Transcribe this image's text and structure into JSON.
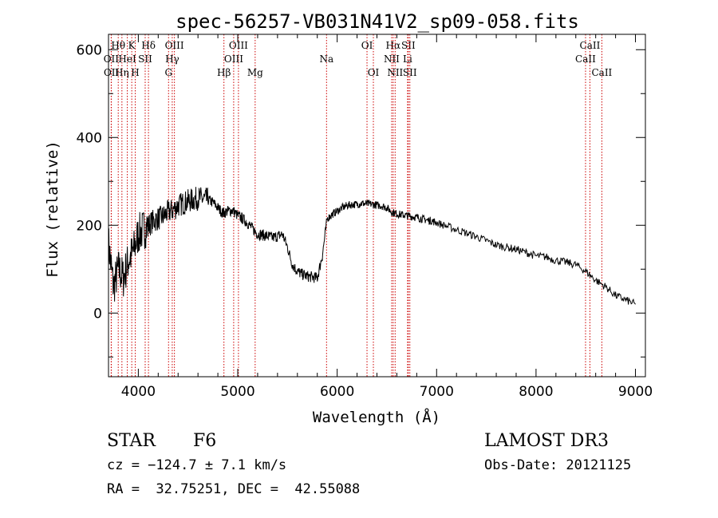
{
  "chart_data": {
    "type": "line",
    "title": "spec-56257-VB031N41V2_sp09-058.fits",
    "xlabel": "Wavelength (Å)",
    "ylabel": "Flux (relative)",
    "xlim": [
      3700,
      9100
    ],
    "ylim": [
      -145,
      635
    ],
    "x_ticks": [
      4000,
      5000,
      6000,
      7000,
      8000,
      9000
    ],
    "x_tick_labels": [
      "4000",
      "5000",
      "6000",
      "7000",
      "8000",
      "9000"
    ],
    "y_ticks": [
      0,
      200,
      400,
      600
    ],
    "y_tick_labels": [
      "0",
      "200",
      "400",
      "600"
    ],
    "series": [
      {
        "name": "flux",
        "x": [
          3700,
          3750,
          3800,
          3850,
          3900,
          3950,
          4000,
          4050,
          4100,
          4150,
          4200,
          4250,
          4300,
          4350,
          4400,
          4450,
          4500,
          4550,
          4600,
          4650,
          4700,
          4750,
          4800,
          4850,
          4900,
          4950,
          5000,
          5050,
          5100,
          5150,
          5200,
          5250,
          5300,
          5350,
          5400,
          5450,
          5500,
          5550,
          5600,
          5650,
          5700,
          5750,
          5800,
          5850,
          5900,
          5950,
          6000,
          6050,
          6100,
          6150,
          6200,
          6250,
          6300,
          6350,
          6400,
          6450,
          6500,
          6550,
          6600,
          6650,
          6700,
          6750,
          6800,
          6850,
          6900,
          6950,
          7000,
          7100,
          7200,
          7300,
          7400,
          7500,
          7600,
          7700,
          7800,
          7900,
          8000,
          8100,
          8200,
          8300,
          8400,
          8500,
          8600,
          8700,
          8800,
          8900,
          9000
        ],
        "y": [
          160,
          60,
          100,
          80,
          120,
          140,
          180,
          190,
          200,
          210,
          215,
          220,
          230,
          235,
          245,
          250,
          255,
          258,
          262,
          260,
          258,
          252,
          240,
          228,
          232,
          234,
          222,
          215,
          205,
          192,
          180,
          178,
          175,
          172,
          175,
          180,
          150,
          110,
          95,
          88,
          84,
          82,
          80,
          130,
          215,
          225,
          232,
          240,
          245,
          247,
          248,
          250,
          249,
          248,
          246,
          244,
          240,
          230,
          226,
          224,
          222,
          220,
          218,
          215,
          212,
          210,
          206,
          198,
          190,
          182,
          174,
          165,
          155,
          150,
          145,
          138,
          130,
          128,
          120,
          116,
          110,
          95,
          75,
          60,
          40,
          30,
          20
        ]
      }
    ],
    "line_markers": [
      {
        "name": "Hθ",
        "wavelength": 3798,
        "row": 1
      },
      {
        "name": "OII",
        "wavelength": 3727,
        "row": 2
      },
      {
        "name": "OII",
        "wavelength": 3729,
        "row": 3
      },
      {
        "name": "HeI",
        "wavelength": 3889,
        "row": 2
      },
      {
        "name": "Hη",
        "wavelength": 3835,
        "row": 3
      },
      {
        "name": "K",
        "wavelength": 3934,
        "row": 1
      },
      {
        "name": "H",
        "wavelength": 3969,
        "row": 3
      },
      {
        "name": "SII",
        "wavelength": 4069,
        "row": 2
      },
      {
        "name": "Hδ",
        "wavelength": 4102,
        "row": 1
      },
      {
        "name": "OIII",
        "wavelength": 4363,
        "row": 1
      },
      {
        "name": "Hγ",
        "wavelength": 4341,
        "row": 2
      },
      {
        "name": "G",
        "wavelength": 4304,
        "row": 3
      },
      {
        "name": "Hβ",
        "wavelength": 4861,
        "row": 3
      },
      {
        "name": "OIII",
        "wavelength": 5007,
        "row": 1
      },
      {
        "name": "OIII",
        "wavelength": 4959,
        "row": 2
      },
      {
        "name": "Mg",
        "wavelength": 5175,
        "row": 3
      },
      {
        "name": "Na",
        "wavelength": 5893,
        "row": 2
      },
      {
        "name": "OI",
        "wavelength": 6300,
        "row": 1
      },
      {
        "name": "OI",
        "wavelength": 6364,
        "row": 3
      },
      {
        "name": "Hα",
        "wavelength": 6563,
        "row": 1
      },
      {
        "name": "NII",
        "wavelength": 6548,
        "row": 2
      },
      {
        "name": "NII",
        "wavelength": 6583,
        "row": 3
      },
      {
        "name": "SII",
        "wavelength": 6716,
        "row": 1
      },
      {
        "name": "Li",
        "wavelength": 6708,
        "row": 2
      },
      {
        "name": "SII",
        "wavelength": 6731,
        "row": 3
      },
      {
        "name": "CaII",
        "wavelength": 8542,
        "row": 1
      },
      {
        "name": "CaII",
        "wavelength": 8498,
        "row": 2
      },
      {
        "name": "CaII",
        "wavelength": 8662,
        "row": 3
      }
    ]
  },
  "info": {
    "class": "STAR",
    "subclass": "F6",
    "survey": "LAMOST DR3",
    "cz": "cz = −124.7 ± 7.1 km/s",
    "obs_date": "Obs-Date: 20121125",
    "coords": "RA =  32.75251, DEC =  42.55088"
  },
  "colors": {
    "spectrum": "#000000",
    "line_marker": "#cc0000",
    "axes": "#000000"
  }
}
